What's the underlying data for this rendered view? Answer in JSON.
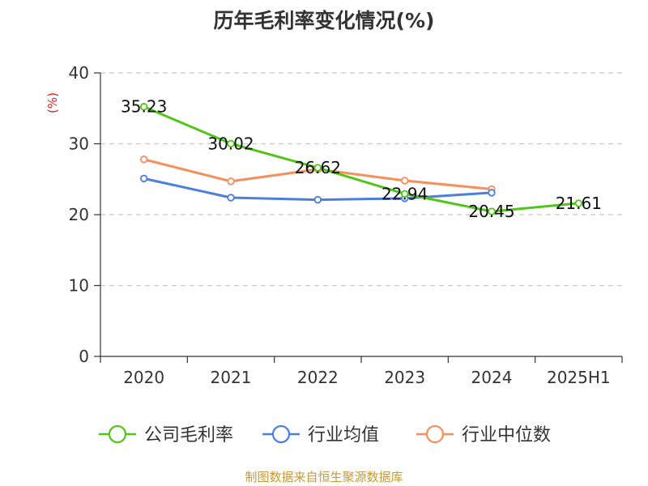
{
  "chart_data": {
    "type": "line",
    "title": "历年毛利率变化情况(%)",
    "ylabel": "(%)",
    "xlabel": "",
    "categories": [
      "2020",
      "2021",
      "2022",
      "2023",
      "2024",
      "2025H1"
    ],
    "ylim": [
      0,
      40
    ],
    "yticks": [
      0,
      10,
      20,
      30,
      40
    ],
    "grid": true,
    "legend_position": "bottom",
    "series": [
      {
        "name": "公司毛利率",
        "color": "#52c41a",
        "show_labels": true,
        "values": [
          35.23,
          30.02,
          26.62,
          22.94,
          20.45,
          21.61
        ]
      },
      {
        "name": "行业均值",
        "color": "#4a7fdc",
        "show_labels": false,
        "values": [
          25.1,
          22.4,
          22.1,
          22.3,
          23.1,
          null
        ]
      },
      {
        "name": "行业中位数",
        "color": "#f4905c",
        "show_labels": false,
        "values": [
          27.8,
          24.7,
          26.4,
          24.8,
          23.6,
          null
        ]
      }
    ]
  },
  "footer": {
    "source": "制图数据来自恒生聚源数据库"
  }
}
